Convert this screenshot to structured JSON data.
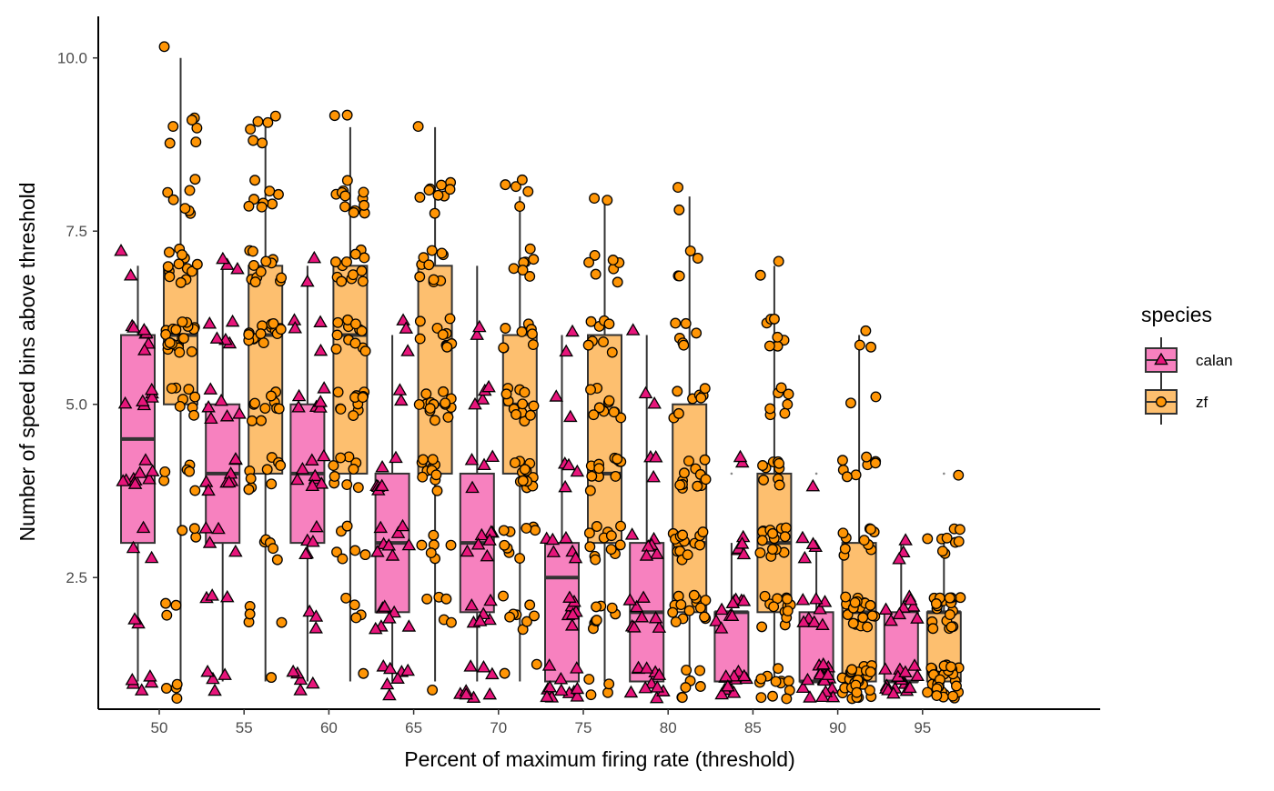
{
  "chart_data": {
    "type": "box",
    "xlabel": "Percent of maximum firing rate (threshold)",
    "ylabel": "Number of speed bins above threshold",
    "categories": [
      "50",
      "55",
      "60",
      "65",
      "70",
      "75",
      "80",
      "85",
      "90",
      "95"
    ],
    "ylim": [
      0.6,
      10.6
    ],
    "yticks": [
      2.5,
      5.0,
      7.5,
      10.0
    ],
    "ytick_labels": [
      "2.5",
      "5.0",
      "7.5",
      "10.0"
    ],
    "grid": false,
    "legend": {
      "title": "species",
      "position": "right"
    },
    "series": [
      {
        "name": "calan",
        "marker": "triangle",
        "box_fill": "#f781bf",
        "point_fill": "#e7157b",
        "boxes": [
          {
            "min": 1,
            "q1": 3,
            "median": 4.5,
            "q3": 6,
            "max": 7
          },
          {
            "min": 1,
            "q1": 3,
            "median": 4,
            "q3": 5,
            "max": 7
          },
          {
            "min": 1,
            "q1": 3,
            "median": 4,
            "q3": 5,
            "max": 7
          },
          {
            "min": 1,
            "q1": 2,
            "median": 3,
            "q3": 4,
            "max": 6
          },
          {
            "min": 1,
            "q1": 2,
            "median": 3,
            "q3": 4,
            "max": 7
          },
          {
            "min": 1,
            "q1": 1,
            "median": 2.5,
            "q3": 3,
            "max": 6
          },
          {
            "min": 1,
            "q1": 1,
            "median": 2,
            "q3": 3,
            "max": 6
          },
          {
            "min": 1,
            "q1": 1,
            "median": 2,
            "q3": 2,
            "max": 3
          },
          {
            "min": 1,
            "q1": 1,
            "median": 1,
            "q3": 2,
            "max": 3
          },
          {
            "min": 1,
            "q1": 1,
            "median": 1,
            "q3": 2,
            "max": 3
          }
        ],
        "outliers": [
          [],
          [],
          [],
          [],
          [],
          [],
          [],
          [
            4
          ],
          [
            4
          ],
          []
        ],
        "points": [
          [
            7,
            7,
            6,
            6,
            6,
            6,
            6,
            6,
            6,
            5,
            5,
            5,
            5,
            5,
            5,
            4,
            4,
            4,
            4,
            4,
            4,
            4,
            4,
            4,
            3,
            3,
            3,
            2,
            2,
            1,
            1,
            1,
            1,
            1
          ],
          [
            7,
            7,
            7,
            6,
            6,
            6,
            6,
            6,
            5,
            5,
            5,
            5,
            5,
            5,
            4,
            4,
            4,
            4,
            4,
            4,
            4,
            4,
            3,
            3,
            3,
            3,
            2,
            2,
            2,
            1,
            1,
            1,
            1
          ],
          [
            7,
            7,
            6,
            6,
            6,
            6,
            5,
            5,
            5,
            5,
            5,
            5,
            4,
            4,
            4,
            4,
            4,
            4,
            4,
            4,
            3,
            3,
            3,
            3,
            3,
            2,
            2,
            2,
            1,
            1,
            1,
            1,
            1
          ],
          [
            6,
            6,
            6,
            5,
            5,
            4,
            4,
            4,
            4,
            4,
            4,
            3,
            3,
            3,
            3,
            3,
            3,
            3,
            3,
            2,
            2,
            2,
            2,
            2,
            2,
            2,
            1,
            1,
            1,
            1,
            1,
            1,
            1
          ],
          [
            6,
            6,
            5,
            5,
            5,
            5,
            4,
            4,
            4,
            4,
            3,
            3,
            3,
            3,
            3,
            3,
            3,
            2,
            2,
            2,
            2,
            2,
            2,
            1,
            1,
            1,
            1,
            1,
            1,
            1,
            1
          ],
          [
            6,
            6,
            5,
            5,
            4,
            4,
            4,
            4,
            3,
            3,
            3,
            3,
            3,
            3,
            2,
            2,
            2,
            2,
            2,
            2,
            2,
            1,
            1,
            1,
            1,
            1,
            1,
            1,
            1,
            1,
            1,
            1,
            1
          ],
          [
            6,
            5,
            5,
            4,
            4,
            4,
            3,
            3,
            3,
            3,
            3,
            3,
            2,
            2,
            2,
            2,
            2,
            2,
            2,
            2,
            1,
            1,
            1,
            1,
            1,
            1,
            1,
            1,
            1,
            1,
            1
          ],
          [
            4,
            4,
            3,
            3,
            3,
            3,
            3,
            2,
            2,
            2,
            2,
            2,
            2,
            2,
            2,
            2,
            2,
            1,
            1,
            1,
            1,
            1,
            1,
            1,
            1,
            1,
            1,
            1,
            1
          ],
          [
            4,
            3,
            3,
            3,
            3,
            2,
            2,
            2,
            2,
            2,
            2,
            2,
            2,
            1,
            1,
            1,
            1,
            1,
            1,
            1,
            1,
            1,
            1,
            1,
            1,
            1,
            1,
            1,
            1,
            1
          ],
          [
            3,
            3,
            3,
            2,
            2,
            2,
            2,
            2,
            2,
            2,
            2,
            1,
            1,
            1,
            1,
            1,
            1,
            1,
            1,
            1,
            1,
            1,
            1,
            1,
            1,
            1,
            1,
            1,
            1
          ]
        ]
      },
      {
        "name": "zf",
        "marker": "circle",
        "box_fill": "#fdbf6f",
        "point_fill": "#ff9505",
        "boxes": [
          {
            "min": 1,
            "q1": 5,
            "median": 6,
            "q3": 7,
            "max": 10
          },
          {
            "min": 1,
            "q1": 4,
            "median": 6,
            "q3": 7,
            "max": 9
          },
          {
            "min": 1,
            "q1": 4,
            "median": 6,
            "q3": 7,
            "max": 9
          },
          {
            "min": 1,
            "q1": 4,
            "median": 5,
            "q3": 7,
            "max": 9
          },
          {
            "min": 1,
            "q1": 4,
            "median": 5,
            "q3": 6,
            "max": 8
          },
          {
            "min": 1,
            "q1": 3,
            "median": 4,
            "q3": 6,
            "max": 8
          },
          {
            "min": 1,
            "q1": 2,
            "median": 3,
            "q3": 5,
            "max": 8
          },
          {
            "min": 1,
            "q1": 2,
            "median": 3,
            "q3": 4,
            "max": 7
          },
          {
            "min": 1,
            "q1": 1,
            "median": 2,
            "q3": 3,
            "max": 6
          },
          {
            "min": 1,
            "q1": 1,
            "median": 2,
            "q3": 2,
            "max": 3
          }
        ],
        "outliers": [
          [],
          [],
          [],
          [],
          [],
          [],
          [],
          [],
          [],
          [
            4
          ]
        ],
        "points": [
          [
            10,
            9,
            9,
            9,
            9,
            9,
            9,
            8,
            8,
            8,
            8,
            8,
            8,
            8,
            7,
            7,
            7,
            7,
            7,
            7,
            7,
            7,
            7,
            7,
            7,
            7,
            7,
            6,
            6,
            6,
            6,
            6,
            6,
            6,
            6,
            6,
            6,
            6,
            6,
            6,
            6,
            6,
            6,
            6,
            6,
            6,
            6,
            5,
            5,
            5,
            5,
            5,
            5,
            5,
            5,
            4,
            4,
            4,
            4,
            4,
            4,
            3,
            3,
            3,
            2,
            2,
            2,
            1,
            1,
            1,
            1
          ],
          [
            9,
            9,
            9,
            9,
            9,
            9,
            8,
            8,
            8,
            8,
            8,
            8,
            8,
            8,
            7,
            7,
            7,
            7,
            7,
            7,
            7,
            7,
            7,
            7,
            7,
            7,
            6,
            6,
            6,
            6,
            6,
            6,
            6,
            6,
            6,
            6,
            6,
            6,
            6,
            6,
            6,
            5,
            5,
            5,
            5,
            5,
            5,
            5,
            5,
            5,
            5,
            4,
            4,
            4,
            4,
            4,
            4,
            4,
            4,
            4,
            3,
            3,
            3,
            3,
            3,
            2,
            2,
            2,
            2,
            1
          ],
          [
            9,
            9,
            8,
            8,
            8,
            8,
            8,
            8,
            8,
            8,
            8,
            8,
            8,
            8,
            7,
            7,
            7,
            7,
            7,
            7,
            7,
            7,
            7,
            7,
            7,
            7,
            6,
            6,
            6,
            6,
            6,
            6,
            6,
            6,
            6,
            6,
            6,
            6,
            5,
            5,
            5,
            5,
            5,
            5,
            5,
            5,
            5,
            5,
            5,
            4,
            4,
            4,
            4,
            4,
            4,
            4,
            4,
            4,
            3,
            3,
            3,
            3,
            3,
            3,
            2,
            2,
            2,
            2,
            1
          ],
          [
            9,
            8,
            8,
            8,
            8,
            8,
            8,
            8,
            8,
            8,
            7,
            7,
            7,
            7,
            7,
            7,
            7,
            7,
            7,
            7,
            6,
            6,
            6,
            6,
            6,
            6,
            6,
            6,
            6,
            6,
            5,
            5,
            5,
            5,
            5,
            5,
            5,
            5,
            5,
            5,
            5,
            5,
            5,
            5,
            4,
            4,
            4,
            4,
            4,
            4,
            4,
            4,
            4,
            4,
            4,
            3,
            3,
            3,
            3,
            3,
            3,
            2,
            2,
            2,
            2,
            2,
            1
          ],
          [
            8,
            8,
            8,
            8,
            8,
            7,
            7,
            7,
            7,
            7,
            7,
            7,
            6,
            6,
            6,
            6,
            6,
            6,
            6,
            6,
            5,
            5,
            5,
            5,
            5,
            5,
            5,
            5,
            5,
            5,
            5,
            5,
            4,
            4,
            4,
            4,
            4,
            4,
            4,
            4,
            4,
            4,
            4,
            4,
            3,
            3,
            3,
            3,
            3,
            3,
            3,
            3,
            3,
            2,
            2,
            2,
            2,
            2,
            2,
            2,
            2,
            1,
            1
          ],
          [
            8,
            8,
            7,
            7,
            7,
            7,
            7,
            7,
            7,
            6,
            6,
            6,
            6,
            6,
            6,
            6,
            6,
            5,
            5,
            5,
            5,
            5,
            5,
            5,
            5,
            5,
            5,
            4,
            4,
            4,
            4,
            4,
            4,
            4,
            4,
            4,
            4,
            4,
            4,
            3,
            3,
            3,
            3,
            3,
            3,
            3,
            3,
            3,
            3,
            3,
            3,
            2,
            2,
            2,
            2,
            2,
            2,
            2,
            2,
            1,
            1,
            1,
            1
          ],
          [
            8,
            8,
            7,
            7,
            7,
            7,
            6,
            6,
            6,
            6,
            6,
            6,
            5,
            5,
            5,
            5,
            5,
            5,
            5,
            5,
            4,
            4,
            4,
            4,
            4,
            4,
            4,
            4,
            4,
            4,
            4,
            4,
            3,
            3,
            3,
            3,
            3,
            3,
            3,
            3,
            3,
            3,
            3,
            3,
            3,
            3,
            2,
            2,
            2,
            2,
            2,
            2,
            2,
            2,
            2,
            2,
            2,
            2,
            2,
            2,
            1,
            1,
            1,
            1,
            1,
            1,
            1
          ],
          [
            7,
            7,
            6,
            6,
            6,
            6,
            6,
            6,
            6,
            5,
            5,
            5,
            5,
            5,
            5,
            5,
            4,
            4,
            4,
            4,
            4,
            4,
            4,
            4,
            4,
            3,
            3,
            3,
            3,
            3,
            3,
            3,
            3,
            3,
            3,
            3,
            3,
            3,
            3,
            2,
            2,
            2,
            2,
            2,
            2,
            2,
            2,
            2,
            2,
            2,
            2,
            2,
            1,
            1,
            1,
            1,
            1,
            1,
            1,
            1,
            1,
            1,
            1,
            1
          ],
          [
            6,
            6,
            6,
            5,
            5,
            4,
            4,
            4,
            4,
            4,
            4,
            4,
            4,
            3,
            3,
            3,
            3,
            3,
            3,
            3,
            3,
            3,
            3,
            2,
            2,
            2,
            2,
            2,
            2,
            2,
            2,
            2,
            2,
            2,
            2,
            2,
            2,
            2,
            2,
            2,
            2,
            1,
            1,
            1,
            1,
            1,
            1,
            1,
            1,
            1,
            1,
            1,
            1,
            1,
            1,
            1,
            1,
            1,
            1,
            1,
            1,
            1,
            1,
            1,
            1,
            1,
            1
          ],
          [
            4,
            3,
            3,
            3,
            3,
            3,
            3,
            3,
            3,
            3,
            2,
            2,
            2,
            2,
            2,
            2,
            2,
            2,
            2,
            2,
            2,
            2,
            2,
            2,
            2,
            2,
            2,
            2,
            2,
            2,
            1,
            1,
            1,
            1,
            1,
            1,
            1,
            1,
            1,
            1,
            1,
            1,
            1,
            1,
            1,
            1,
            1,
            1,
            1,
            1,
            1,
            1,
            1,
            1,
            1,
            1,
            1,
            1,
            1,
            1,
            1
          ]
        ]
      }
    ]
  }
}
